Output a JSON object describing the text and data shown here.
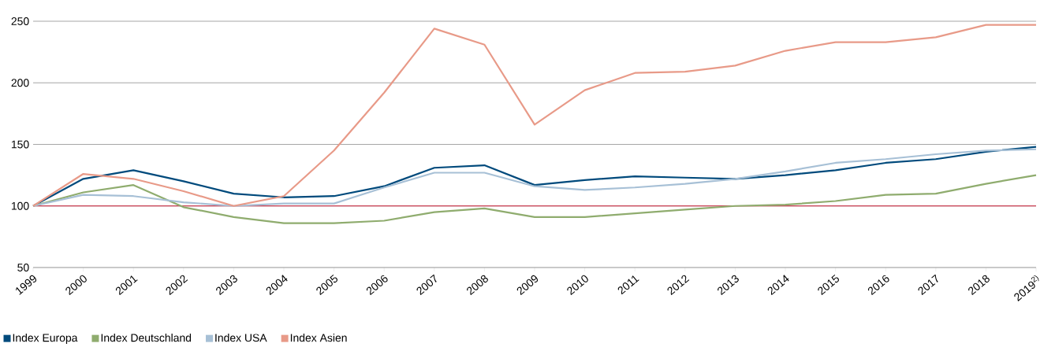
{
  "chart_data": {
    "type": "line",
    "categories": [
      "1999",
      "2000",
      "2001",
      "2002",
      "2003",
      "2004",
      "2005",
      "2006",
      "2007",
      "2008",
      "2009",
      "2010",
      "2011",
      "2012",
      "2013",
      "2014",
      "2015",
      "2016",
      "2017",
      "2018",
      "2019$^{2)}$"
    ],
    "series": [
      {
        "name": "Index Europa",
        "color": "#004a7c",
        "values": [
          100,
          122,
          129,
          120,
          110,
          107,
          108,
          116,
          131,
          133,
          117,
          121,
          124,
          123,
          122,
          125,
          129,
          135,
          138,
          144,
          148
        ]
      },
      {
        "name": "Index Deutschland",
        "color": "#8fac6e",
        "values": [
          100,
          111,
          117,
          99,
          91,
          86,
          86,
          88,
          95,
          98,
          91,
          91,
          94,
          97,
          100,
          101,
          104,
          109,
          110,
          118,
          125
        ]
      },
      {
        "name": "Index USA",
        "color": "#a7c0d6",
        "values": [
          100,
          109,
          108,
          103,
          100,
          102,
          102,
          115,
          127,
          127,
          116,
          113,
          115,
          118,
          122,
          128,
          135,
          138,
          142,
          145,
          146
        ]
      },
      {
        "name": "Index Asien",
        "color": "#e89a88",
        "values": [
          100,
          126,
          122,
          112,
          100,
          108,
          145,
          192,
          244,
          231,
          166,
          194,
          208,
          209,
          214,
          226,
          233,
          233,
          237,
          247,
          247
        ]
      }
    ],
    "ylim": [
      50,
      250
    ],
    "yticks": [
      50,
      100,
      150,
      200,
      250
    ],
    "ref_lines": [
      {
        "axis": "y",
        "value": 100,
        "color": "#d0203a"
      }
    ],
    "grid": "y",
    "legend": "bottom left",
    "marker": "none",
    "line_style": "solid"
  }
}
